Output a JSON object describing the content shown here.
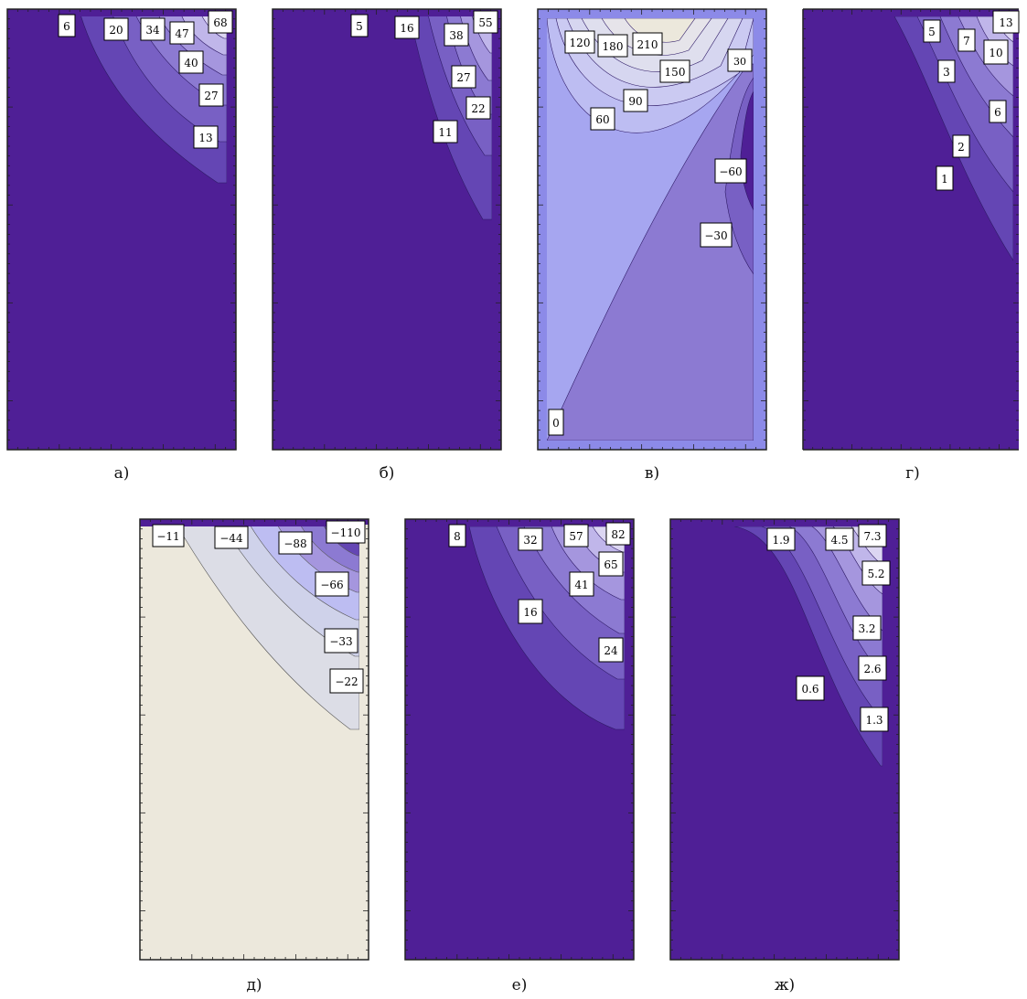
{
  "chart_data": [
    {
      "type": "contour",
      "caption": "а)",
      "background": "#4f1f96",
      "labels": [
        "6",
        "20",
        "34",
        "47",
        "68",
        "40",
        "27",
        "13"
      ]
    },
    {
      "type": "contour",
      "caption": "б)",
      "background": "#4f1f96",
      "labels": [
        "5",
        "16",
        "38",
        "55",
        "27",
        "22",
        "11"
      ]
    },
    {
      "type": "contour",
      "caption": "в)",
      "background": "#a6a6f0",
      "labels": [
        "120",
        "180",
        "210",
        "150",
        "30",
        "90",
        "60",
        "−60",
        "−30",
        "0"
      ]
    },
    {
      "type": "contour",
      "caption": "г)",
      "background": "#4f1f96",
      "labels": [
        "5",
        "7",
        "13",
        "10",
        "3",
        "6",
        "2",
        "1"
      ]
    },
    {
      "type": "contour",
      "caption": "д)",
      "background": "#ece8dc",
      "labels": [
        "−11",
        "−44",
        "−88",
        "−110",
        "−66",
        "−33",
        "−22"
      ]
    },
    {
      "type": "contour",
      "caption": "е)",
      "background": "#4f1f96",
      "labels": [
        "8",
        "32",
        "57",
        "82",
        "65",
        "41",
        "16",
        "24"
      ]
    },
    {
      "type": "contour",
      "caption": "ж)",
      "background": "#4f1f96",
      "labels": [
        "1.9",
        "4.5",
        "7.3",
        "5.2",
        "3.2",
        "2.6",
        "0.6",
        "1.3"
      ]
    }
  ]
}
